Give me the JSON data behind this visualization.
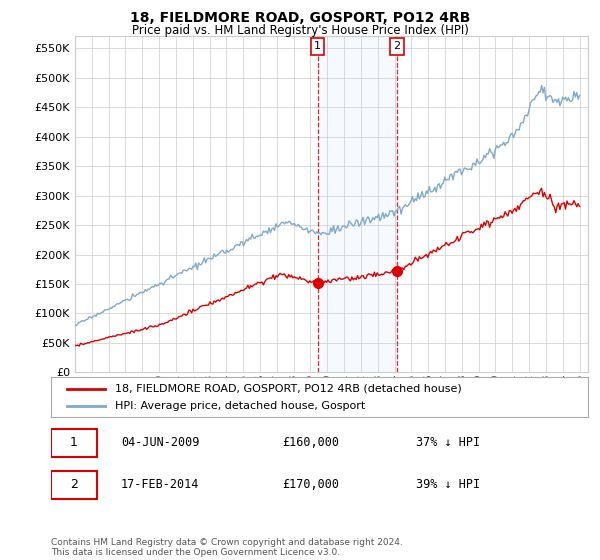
{
  "title": "18, FIELDMORE ROAD, GOSPORT, PO12 4RB",
  "subtitle": "Price paid vs. HM Land Registry's House Price Index (HPI)",
  "ylim": [
    0,
    570000
  ],
  "yticks": [
    0,
    50000,
    100000,
    150000,
    200000,
    250000,
    300000,
    350000,
    400000,
    450000,
    500000,
    550000
  ],
  "xstart_year": 1995,
  "xend_year": 2025,
  "hpi_color": "#7faacc",
  "price_color": "#dd0000",
  "sale1_date": "04-JUN-2009",
  "sale1_price": 160000,
  "sale1_pct": "37%",
  "sale1_year": 2009.42,
  "sale2_date": "17-FEB-2014",
  "sale2_price": 170000,
  "sale2_pct": "39%",
  "sale2_year": 2014.13,
  "legend_line1": "18, FIELDMORE ROAD, GOSPORT, PO12 4RB (detached house)",
  "legend_line2": "HPI: Average price, detached house, Gosport",
  "annotation_text": "Contains HM Land Registry data © Crown copyright and database right 2024.\nThis data is licensed under the Open Government Licence v3.0.",
  "highlight_color": "#ddeeff",
  "background_color": "#ffffff",
  "grid_color": "#cccccc"
}
